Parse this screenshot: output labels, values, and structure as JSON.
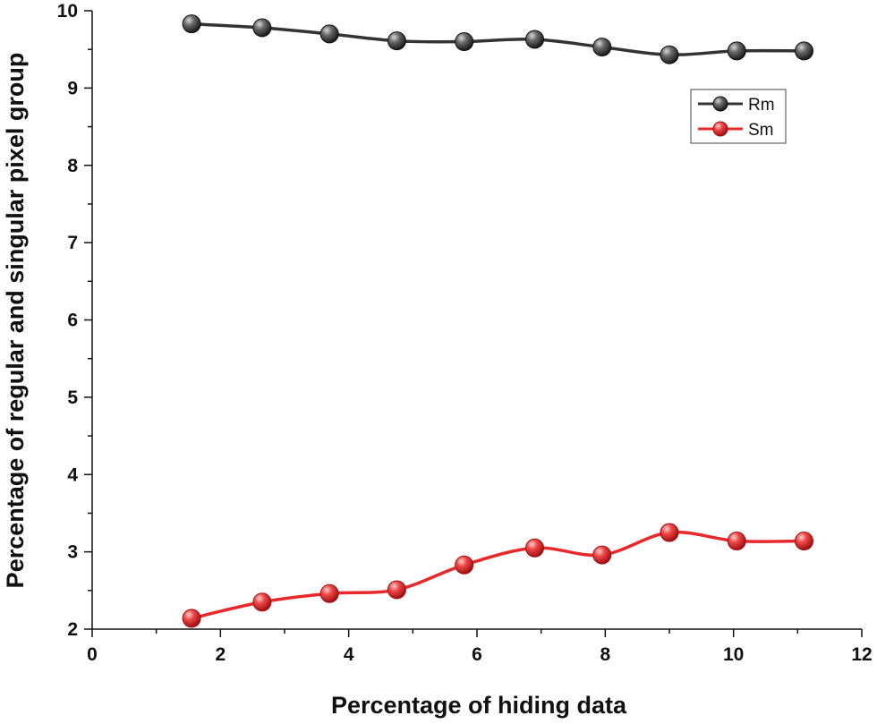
{
  "chart_data": {
    "type": "line",
    "title": "",
    "xlabel": "Percentage of hiding data",
    "ylabel": "Percentage of regular and singular pixel group",
    "xlim": [
      0,
      12
    ],
    "ylim": [
      2,
      10
    ],
    "xticks": [
      "0",
      "2",
      "4",
      "6",
      "8",
      "10",
      "12"
    ],
    "yticks": [
      "2",
      "3",
      "4",
      "5",
      "6",
      "7",
      "8",
      "9",
      "10"
    ],
    "grid": false,
    "legend_position": "top-right",
    "series": [
      {
        "name": "Rm",
        "color": "#333333",
        "x": [
          1.55,
          2.65,
          3.7,
          4.75,
          5.8,
          6.9,
          7.95,
          9.0,
          10.05,
          11.1
        ],
        "y": [
          9.83,
          9.78,
          9.7,
          9.61,
          9.6,
          9.63,
          9.53,
          9.43,
          9.48,
          9.48
        ]
      },
      {
        "name": "Sm",
        "color": "#e8292c",
        "x": [
          1.55,
          2.65,
          3.7,
          4.75,
          5.8,
          6.9,
          7.95,
          9.0,
          10.05,
          11.1
        ],
        "y": [
          2.14,
          2.35,
          2.46,
          2.51,
          2.83,
          3.05,
          2.96,
          3.25,
          3.14,
          3.14
        ]
      }
    ]
  }
}
